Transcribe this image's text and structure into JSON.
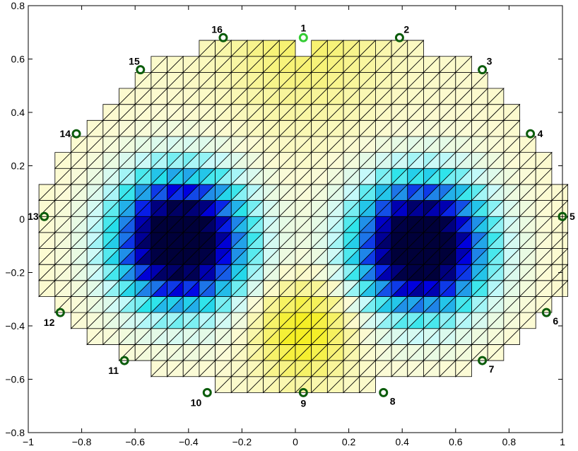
{
  "chart_data": {
    "type": "heatmap",
    "title": "",
    "xlabel": "",
    "ylabel": "",
    "xlim": [
      -1,
      1
    ],
    "ylim": [
      -0.8,
      0.8
    ],
    "grid": false,
    "xticks": [
      -1,
      -0.8,
      -0.6,
      -0.4,
      -0.2,
      0,
      0.2,
      0.4,
      0.6,
      0.8,
      1
    ],
    "yticks": [
      -0.8,
      -0.6,
      -0.4,
      -0.2,
      0,
      0.2,
      0.4,
      0.6,
      0.8
    ],
    "xtick_labels": [
      "−1",
      "−0.8",
      "−0.6",
      "−0.4",
      "−0.2",
      "0",
      "0.2",
      "0.4",
      "0.6",
      "0.8",
      "1"
    ],
    "ytick_labels": [
      "−0.8",
      "−0.6",
      "−0.4",
      "−0.2",
      "0",
      "0.2",
      "0.4",
      "0.6",
      "0.8"
    ],
    "mesh": {
      "cell_size": 0.06,
      "x_origin": 0.0,
      "y_origin": -0.65,
      "rows": [
        {
          "y0": -0.65,
          "x0": -0.3,
          "x1": 0.3
        },
        {
          "y0": -0.59,
          "x0": -0.54,
          "x1": 0.66
        },
        {
          "y0": -0.53,
          "x0": -0.66,
          "x1": 0.78
        },
        {
          "y0": -0.47,
          "x0": -0.78,
          "x1": 0.84
        },
        {
          "y0": -0.41,
          "x0": -0.84,
          "x1": 0.9
        },
        {
          "y0": -0.35,
          "x0": -0.9,
          "x1": 0.96
        },
        {
          "y0": -0.29,
          "x0": -0.96,
          "x1": 1.02
        },
        {
          "y0": -0.23,
          "x0": -0.96,
          "x1": 1.02
        },
        {
          "y0": -0.17,
          "x0": -0.96,
          "x1": 1.02
        },
        {
          "y0": -0.11,
          "x0": -0.96,
          "x1": 1.02
        },
        {
          "y0": -0.05,
          "x0": -0.96,
          "x1": 1.02
        },
        {
          "y0": 0.01,
          "x0": -0.96,
          "x1": 1.02
        },
        {
          "y0": 0.07,
          "x0": -0.96,
          "x1": 1.02
        },
        {
          "y0": 0.13,
          "x0": -0.9,
          "x1": 0.96
        },
        {
          "y0": 0.19,
          "x0": -0.9,
          "x1": 0.96
        },
        {
          "y0": 0.25,
          "x0": -0.84,
          "x1": 0.9
        },
        {
          "y0": 0.31,
          "x0": -0.78,
          "x1": 0.84
        },
        {
          "y0": 0.37,
          "x0": -0.72,
          "x1": 0.84
        },
        {
          "y0": 0.43,
          "x0": -0.66,
          "x1": 0.78
        },
        {
          "y0": 0.49,
          "x0": -0.6,
          "x1": 0.72
        },
        {
          "y0": 0.55,
          "x0": -0.54,
          "x1": 0.66
        },
        {
          "y0": 0.61,
          "x0": -0.36,
          "x1": 0.48
        }
      ],
      "gaps": [
        {
          "y0": 0.61,
          "x0": 0.0,
          "x1": 0.06
        }
      ]
    },
    "field": {
      "baseline": 0.35,
      "sources": [
        {
          "x": -0.43,
          "y": -0.08,
          "amplitude": -1.65,
          "sigma": 0.17
        },
        {
          "x": 0.47,
          "y": -0.1,
          "amplitude": -1.65,
          "sigma": 0.17
        },
        {
          "x": 0.03,
          "y": -0.42,
          "amplitude": 0.75,
          "sigma": 0.11
        },
        {
          "x": 0.03,
          "y": 0.68,
          "amplitude": 0.35,
          "sigma": 0.2
        }
      ]
    },
    "colormap": [
      {
        "v": -1.0,
        "color": "#00003a"
      },
      {
        "v": -0.82,
        "color": "#00007a"
      },
      {
        "v": -0.62,
        "color": "#0000e6"
      },
      {
        "v": -0.4,
        "color": "#1f7fe8"
      },
      {
        "v": -0.15,
        "color": "#26e3ea"
      },
      {
        "v": 0.1,
        "color": "#c9fafa"
      },
      {
        "v": 0.32,
        "color": "#fcfbd6"
      },
      {
        "v": 0.6,
        "color": "#f7f383"
      },
      {
        "v": 1.0,
        "color": "#f5ef25"
      }
    ],
    "electrodes": [
      {
        "label": "1",
        "x": 0.03,
        "y": 0.68,
        "active": true,
        "anchor": "above"
      },
      {
        "label": "2",
        "x": 0.39,
        "y": 0.68,
        "active": false,
        "anchor": "above-right"
      },
      {
        "label": "3",
        "x": 0.7,
        "y": 0.56,
        "active": false,
        "anchor": "above-right"
      },
      {
        "label": "4",
        "x": 0.88,
        "y": 0.32,
        "active": false,
        "anchor": "right"
      },
      {
        "label": "5",
        "x": 1.0,
        "y": 0.01,
        "active": false,
        "anchor": "right"
      },
      {
        "label": "6",
        "x": 0.94,
        "y": -0.35,
        "active": false,
        "anchor": "below-right"
      },
      {
        "label": "7",
        "x": 0.7,
        "y": -0.53,
        "active": false,
        "anchor": "below-right"
      },
      {
        "label": "8",
        "x": 0.33,
        "y": -0.65,
        "active": false,
        "anchor": "below-right"
      },
      {
        "label": "9",
        "x": 0.03,
        "y": -0.65,
        "active": false,
        "anchor": "below"
      },
      {
        "label": "10",
        "x": -0.33,
        "y": -0.65,
        "active": false,
        "anchor": "below-left"
      },
      {
        "label": "11",
        "x": -0.64,
        "y": -0.53,
        "active": false,
        "anchor": "below-left"
      },
      {
        "label": "12",
        "x": -0.88,
        "y": -0.35,
        "active": false,
        "anchor": "below-left"
      },
      {
        "label": "13",
        "x": -0.94,
        "y": 0.01,
        "active": false,
        "anchor": "left"
      },
      {
        "label": "14",
        "x": -0.82,
        "y": 0.32,
        "active": false,
        "anchor": "left"
      },
      {
        "label": "15",
        "x": -0.58,
        "y": 0.56,
        "active": false,
        "anchor": "above-left"
      },
      {
        "label": "16",
        "x": -0.27,
        "y": 0.68,
        "active": false,
        "anchor": "above-left"
      }
    ],
    "colors": {
      "electrode_active": "#33cc33",
      "electrode_inactive": "#0b5c0b",
      "mesh_edge": "#000000",
      "axes": "#000000"
    }
  }
}
